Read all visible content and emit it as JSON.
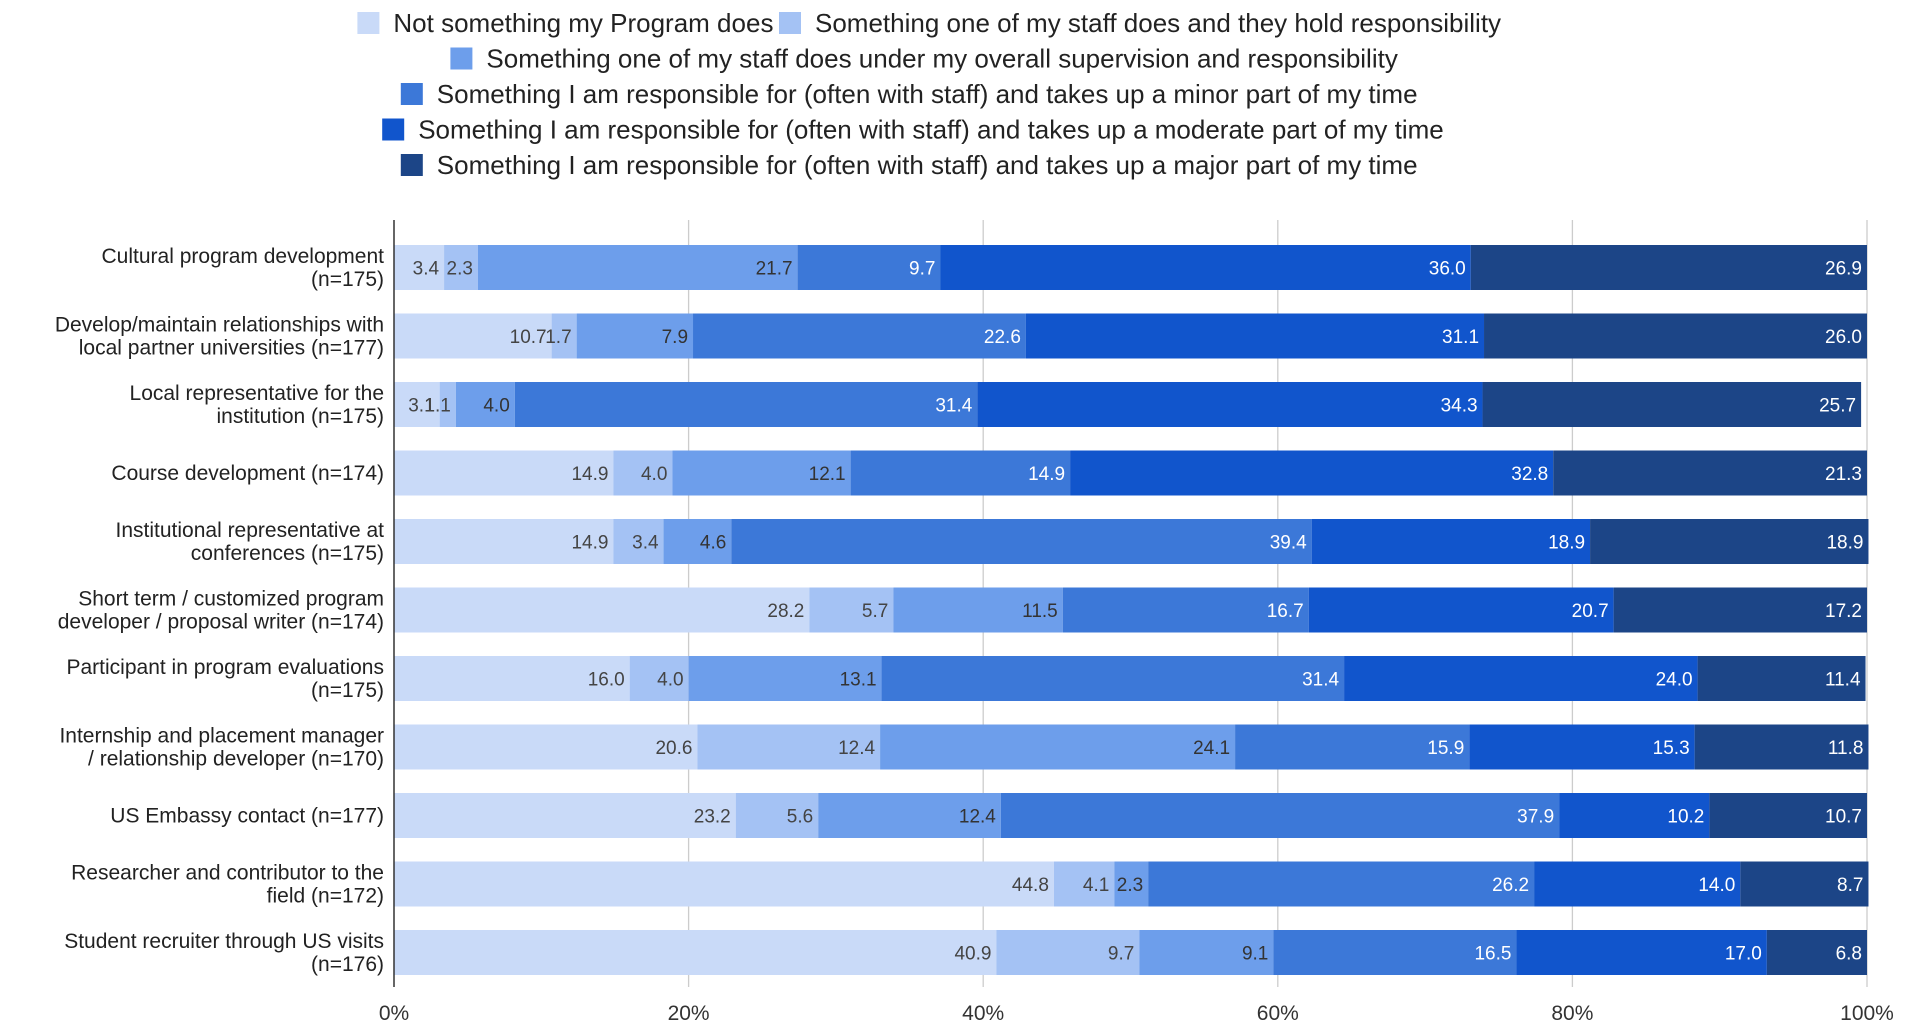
{
  "chart_data": {
    "type": "bar",
    "orientation": "horizontal",
    "stacked": true,
    "categories": [
      [
        "Cultural program development",
        "(n=175)"
      ],
      [
        "Develop/maintain relationships with",
        "local partner universities (n=177)"
      ],
      [
        "Local representative for the",
        "institution (n=175)"
      ],
      [
        "Course development (n=174)"
      ],
      [
        "Institutional representative at",
        "conferences (n=175)"
      ],
      [
        "Short term / customized program",
        "developer / proposal writer (n=174)"
      ],
      [
        "Participant in program evaluations",
        "(n=175)"
      ],
      [
        "Internship and placement manager",
        "/ relationship developer (n=170)"
      ],
      [
        "US Embassy contact (n=177)"
      ],
      [
        "Researcher and contributor to the",
        "field (n=172)"
      ],
      [
        "Student recruiter through US visits",
        "(n=176)"
      ]
    ],
    "series": [
      {
        "name": "Not something my Program does",
        "color": "#c9daf8",
        "label_color": "#444444",
        "values": [
          3.4,
          10.7,
          3.1,
          14.9,
          14.9,
          28.2,
          16.0,
          20.6,
          23.2,
          44.8,
          40.9
        ]
      },
      {
        "name": "Something one of my staff does and they hold responsibility",
        "color": "#a4c2f4",
        "label_color": "#444444",
        "values": [
          2.3,
          1.7,
          1.1,
          4.0,
          3.4,
          5.7,
          4.0,
          12.4,
          5.6,
          4.1,
          9.7
        ]
      },
      {
        "name": "Something one of my staff does under my overall supervision and responsibility",
        "color": "#6d9eeb",
        "label_color": "#333333",
        "values": [
          21.7,
          7.9,
          4.0,
          12.1,
          4.6,
          11.5,
          13.1,
          24.1,
          12.4,
          2.3,
          9.1
        ]
      },
      {
        "name": "Something I am responsible for (often with staff) and takes up a minor part of my time",
        "color": "#3c78d8",
        "label_color": "#ffffff",
        "values": [
          9.7,
          22.6,
          31.4,
          14.9,
          39.4,
          16.7,
          31.4,
          15.9,
          37.9,
          26.2,
          16.5
        ]
      },
      {
        "name": "Something I am responsible for (often with staff) and takes up a moderate part of my time",
        "color": "#1155cc",
        "label_color": "#ffffff",
        "values": [
          36.0,
          31.1,
          34.3,
          32.8,
          18.9,
          20.7,
          24.0,
          15.3,
          10.2,
          14.0,
          17.0
        ]
      },
      {
        "name": "Something I am responsible for (often with staff) and takes up a major part of my time",
        "color": "#1c4587",
        "label_color": "#ffffff",
        "values": [
          26.9,
          26.0,
          25.7,
          21.3,
          18.9,
          17.2,
          11.4,
          11.8,
          10.7,
          8.7,
          6.8
        ]
      }
    ],
    "xlim": [
      0,
      100
    ],
    "x_ticks": [
      "0%",
      "20%",
      "40%",
      "60%",
      "80%",
      "100%"
    ],
    "grid": true,
    "legend_position": "top"
  }
}
